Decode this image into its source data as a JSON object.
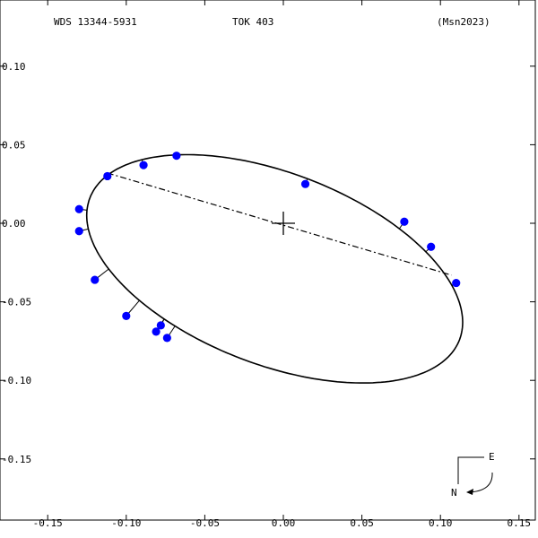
{
  "header": {
    "left": "WDS 13344-5931",
    "center": "TOK 403",
    "right": "(Msn2023)"
  },
  "compass": {
    "east": "E",
    "north": "N"
  },
  "colors": {
    "points": "#0000ff",
    "orbit": "#000000",
    "background": "#ffffff"
  },
  "chart_data": {
    "type": "scatter",
    "title": "",
    "xlabel": "",
    "ylabel": "",
    "xlim": [
      -0.15,
      0.15
    ],
    "ylim": [
      -0.1,
      0.1
    ],
    "x_ticks": [
      {
        "v": -0.15,
        "label": "-0.15"
      },
      {
        "v": -0.1,
        "label": "-0.10"
      },
      {
        "v": -0.05,
        "label": "-0.05"
      },
      {
        "v": 0.0,
        "label": "0.00"
      },
      {
        "v": 0.05,
        "label": "0.05"
      },
      {
        "v": 0.1,
        "label": "0.10"
      },
      {
        "v": 0.15,
        "label": "0.15"
      }
    ],
    "y_ticks": [
      {
        "v": 0.1,
        "label": "0.10"
      },
      {
        "v": 0.05,
        "label": "0.05"
      },
      {
        "v": 0.0,
        "label": "0.00"
      },
      {
        "v": -0.05,
        "label": "-0.05"
      },
      {
        "v": -0.1,
        "label": "-0.10"
      },
      {
        "v": -0.15,
        "label": "-0.15"
      }
    ],
    "orbit_ellipse": {
      "center": [
        -0.0055,
        -0.029
      ],
      "semi_major": 0.126,
      "semi_minor": 0.061,
      "angle_deg": -21
    },
    "line_of_nodes": [
      [
        -0.112,
        0.032
      ],
      [
        0.107,
        -0.033
      ]
    ],
    "primary": [
      0.0,
      0.0
    ],
    "observations": [
      {
        "x": -0.068,
        "y": 0.043
      },
      {
        "x": -0.089,
        "y": 0.037
      },
      {
        "x": -0.112,
        "y": 0.03
      },
      {
        "x": -0.13,
        "y": 0.009
      },
      {
        "x": -0.13,
        "y": -0.005
      },
      {
        "x": -0.12,
        "y": -0.036
      },
      {
        "x": -0.1,
        "y": -0.059
      },
      {
        "x": -0.078,
        "y": -0.065
      },
      {
        "x": -0.081,
        "y": -0.069
      },
      {
        "x": -0.074,
        "y": -0.073
      },
      {
        "x": 0.014,
        "y": 0.025
      },
      {
        "x": 0.077,
        "y": 0.001
      },
      {
        "x": 0.094,
        "y": -0.015
      },
      {
        "x": 0.11,
        "y": -0.038
      }
    ]
  }
}
